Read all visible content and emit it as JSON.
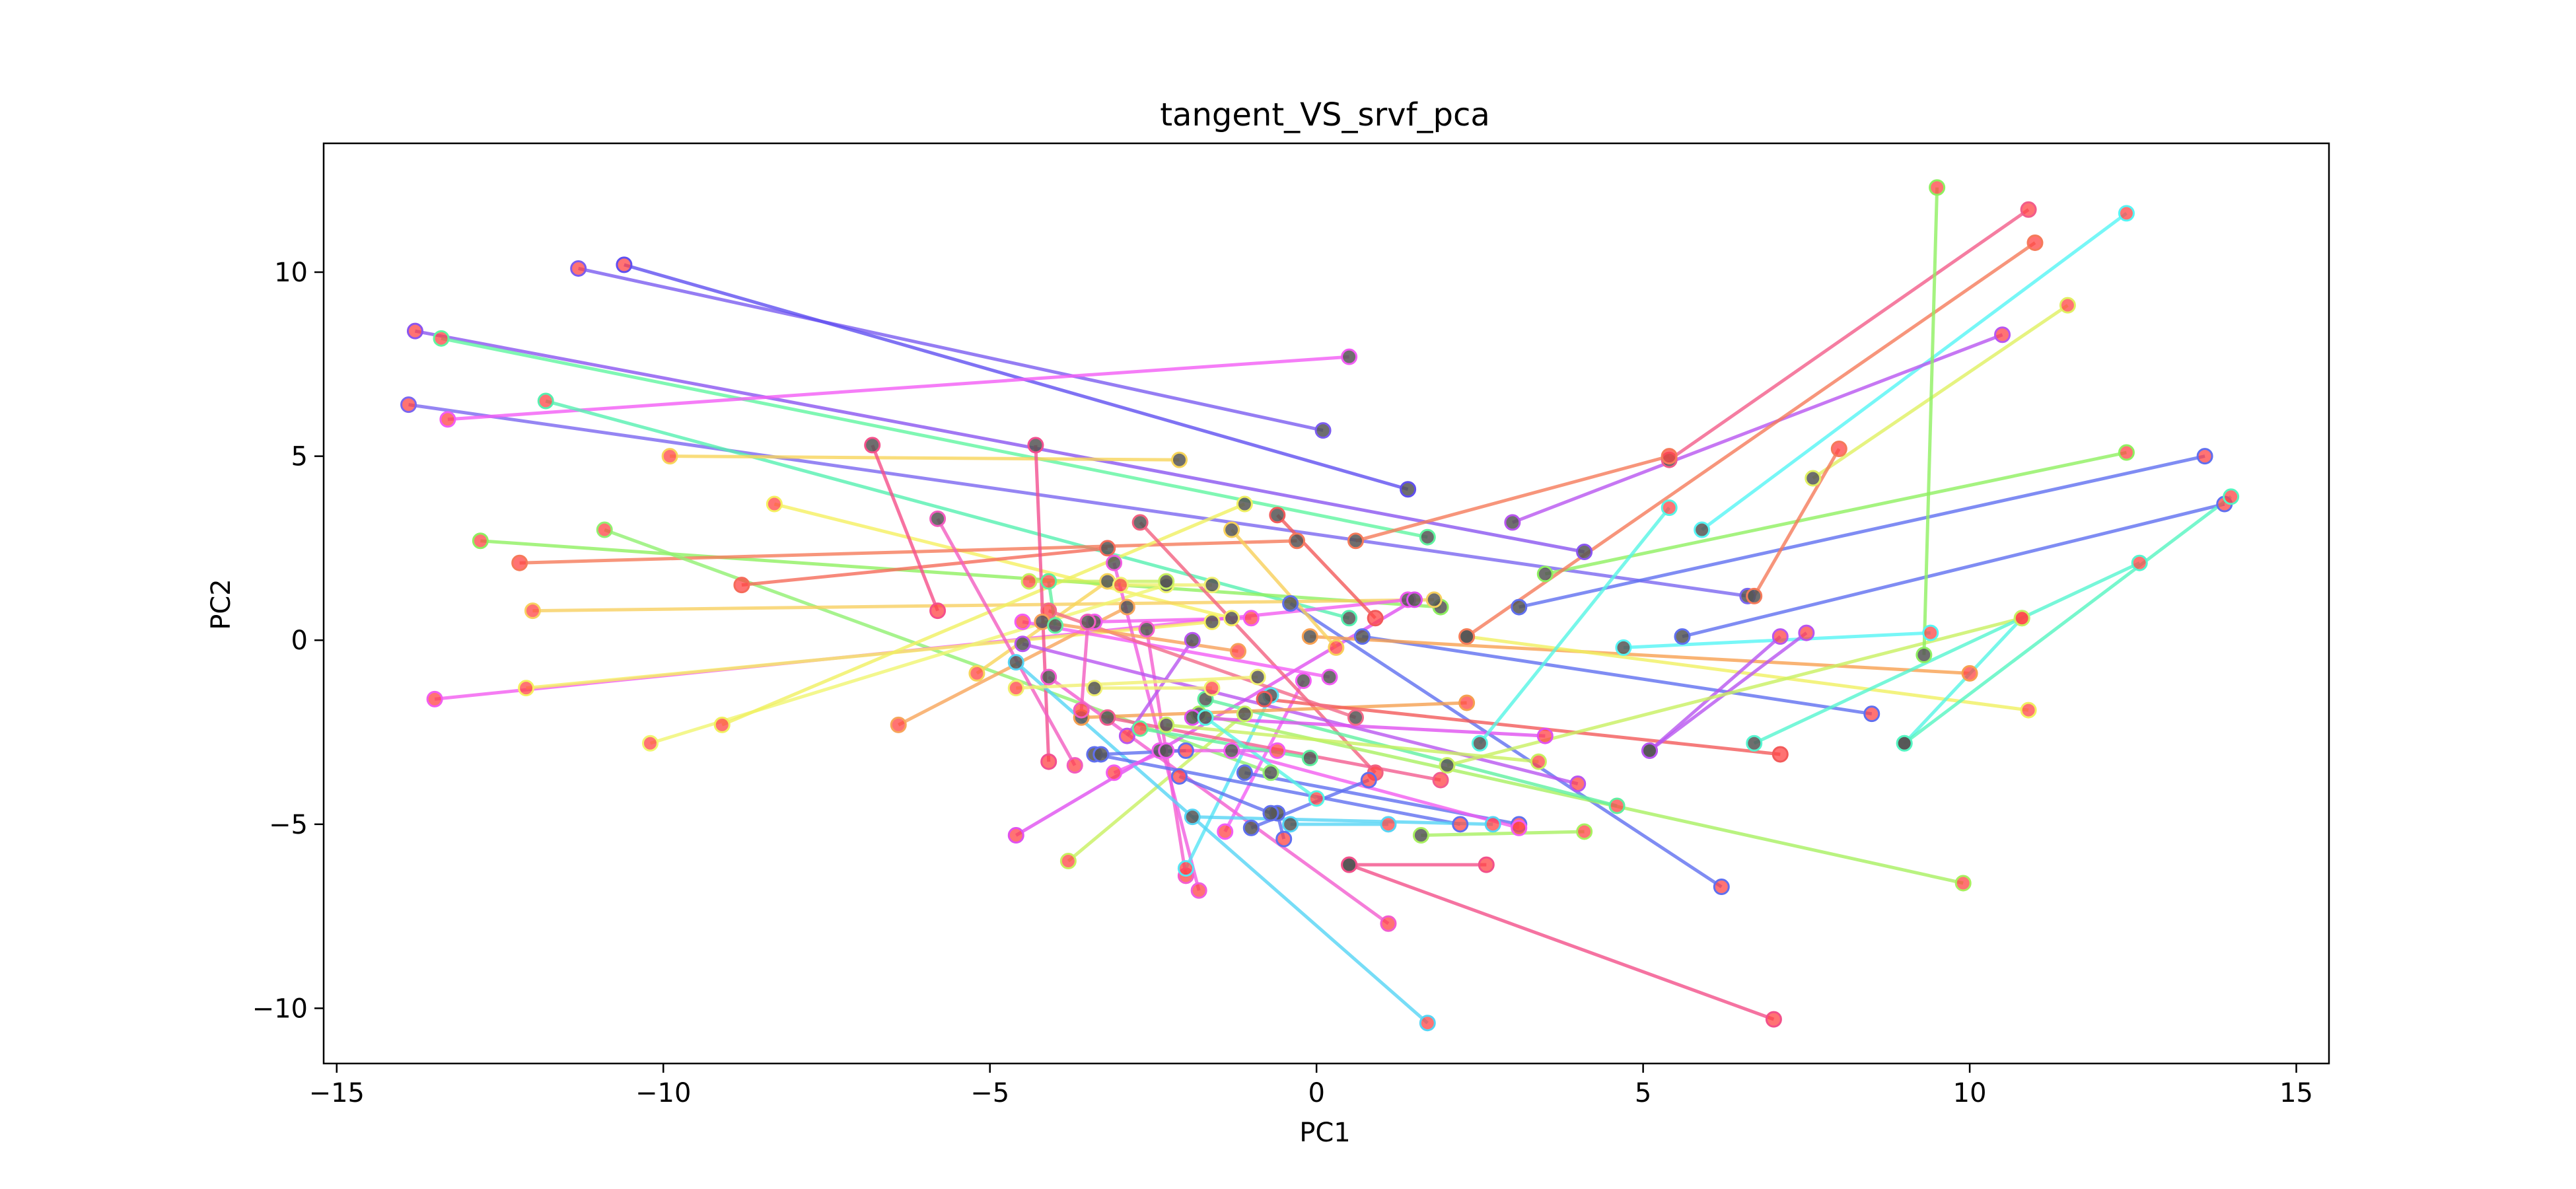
{
  "chart_data": {
    "type": "scatter",
    "title": "tangent_VS_srvf_pca",
    "xlabel": "PC1",
    "ylabel": "PC2",
    "xlim": [
      -15.2,
      15.5
    ],
    "ylim": [
      -11.5,
      13.5
    ],
    "xticks": [
      -15,
      -10,
      -5,
      0,
      5,
      10,
      15
    ],
    "yticks": [
      -10,
      -5,
      0,
      5,
      10
    ],
    "xtick_labels": [
      "−15",
      "−10",
      "−5",
      "0",
      "5",
      "10",
      "15"
    ],
    "ytick_labels": [
      "−10",
      "−5",
      "0",
      "5",
      "10"
    ],
    "grid": false,
    "legend": "none",
    "marker_colors": {
      "tangent": "#ff4444",
      "srvf": "#555555"
    },
    "pairs": [
      {
        "tangent": [
          -11.3,
          10.1
        ],
        "srvf": [
          0.1,
          5.7
        ],
        "color": "#7b5cf0"
      },
      {
        "tangent": [
          -10.6,
          10.2
        ],
        "srvf": [
          1.4,
          4.1
        ],
        "color": "#5f4ff0"
      },
      {
        "tangent": [
          -13.8,
          8.4
        ],
        "srvf": [
          4.1,
          2.4
        ],
        "color": "#8a55f0"
      },
      {
        "tangent": [
          -13.4,
          8.2
        ],
        "srvf": [
          1.7,
          2.8
        ],
        "color": "#5ff5a0"
      },
      {
        "tangent": [
          -13.9,
          6.4
        ],
        "srvf": [
          6.6,
          1.2
        ],
        "color": "#7a66f0"
      },
      {
        "tangent": [
          -13.3,
          6.0
        ],
        "srvf": [
          0.5,
          7.7
        ],
        "color": "#f25cf5"
      },
      {
        "tangent": [
          -11.8,
          6.5
        ],
        "srvf": [
          0.5,
          0.6
        ],
        "color": "#55f0b0"
      },
      {
        "tangent": [
          -9.9,
          5.0
        ],
        "srvf": [
          -2.1,
          4.9
        ],
        "color": "#f7d55a"
      },
      {
        "tangent": [
          -8.3,
          3.7
        ],
        "srvf": [
          -1.3,
          0.6
        ],
        "color": "#f5f060"
      },
      {
        "tangent": [
          -12.8,
          2.7
        ],
        "srvf": [
          1.9,
          0.9
        ],
        "color": "#8ef060"
      },
      {
        "tangent": [
          -12.2,
          2.1
        ],
        "srvf": [
          -0.3,
          2.7
        ],
        "color": "#f57a5a"
      },
      {
        "tangent": [
          -10.9,
          3.0
        ],
        "srvf": [
          -0.7,
          -3.6
        ],
        "color": "#90f070"
      },
      {
        "tangent": [
          -8.8,
          1.5
        ],
        "srvf": [
          -3.2,
          2.5
        ],
        "color": "#f56b5a"
      },
      {
        "tangent": [
          -12.0,
          0.8
        ],
        "srvf": [
          1.8,
          1.1
        ],
        "color": "#f7d060"
      },
      {
        "tangent": [
          -13.5,
          -1.6
        ],
        "srvf": [
          1.4,
          1.1
        ],
        "color": "#f25cf0"
      },
      {
        "tangent": [
          -12.1,
          -1.3
        ],
        "srvf": [
          -1.6,
          0.5
        ],
        "color": "#f5f060"
      },
      {
        "tangent": [
          -10.2,
          -2.8
        ],
        "srvf": [
          -2.3,
          1.5
        ],
        "color": "#f0f570"
      },
      {
        "tangent": [
          -9.1,
          -2.3
        ],
        "srvf": [
          -1.1,
          3.7
        ],
        "color": "#f0f060"
      },
      {
        "tangent": [
          -6.4,
          -2.3
        ],
        "srvf": [
          -2.9,
          0.9
        ],
        "color": "#f7a55a"
      },
      {
        "tangent": [
          -5.8,
          0.8
        ],
        "srvf": [
          -6.8,
          5.3
        ],
        "color": "#f54f8a"
      },
      {
        "tangent": [
          -5.2,
          -0.9
        ],
        "srvf": [
          -3.2,
          1.6
        ],
        "color": "#f7d55a"
      },
      {
        "tangent": [
          -4.6,
          -5.3
        ],
        "srvf": [
          1.5,
          1.1
        ],
        "color": "#e050f0"
      },
      {
        "tangent": [
          -3.8,
          -6.0
        ],
        "srvf": [
          -1.1,
          -2.0
        ],
        "color": "#c8f060"
      },
      {
        "tangent": [
          -4.1,
          -3.3
        ],
        "srvf": [
          -4.3,
          5.3
        ],
        "color": "#f24f90"
      },
      {
        "tangent": [
          -3.7,
          -3.4
        ],
        "srvf": [
          -5.8,
          3.3
        ],
        "color": "#f25cc0"
      },
      {
        "tangent": [
          -2.0,
          -6.4
        ],
        "srvf": [
          -2.6,
          0.3
        ],
        "color": "#f55cd0"
      },
      {
        "tangent": [
          -1.8,
          -6.8
        ],
        "srvf": [
          -3.1,
          2.1
        ],
        "color": "#f05ce0"
      },
      {
        "tangent": [
          -2.0,
          -6.2
        ],
        "srvf": [
          -0.7,
          -1.5
        ],
        "color": "#55e5f5"
      },
      {
        "tangent": [
          1.7,
          -10.4
        ],
        "srvf": [
          -4.6,
          -0.6
        ],
        "color": "#55d5f5"
      },
      {
        "tangent": [
          1.1,
          -7.7
        ],
        "srvf": [
          -4.1,
          -1.0
        ],
        "color": "#f25cd0"
      },
      {
        "tangent": [
          -1.4,
          -5.2
        ],
        "srvf": [
          -0.2,
          -1.1
        ],
        "color": "#f25cf5"
      },
      {
        "tangent": [
          0.9,
          -3.6
        ],
        "srvf": [
          -2.7,
          3.2
        ],
        "color": "#f26080"
      },
      {
        "tangent": [
          2.6,
          -6.1
        ],
        "srvf": [
          0.5,
          -6.1
        ],
        "color": "#f2508a"
      },
      {
        "tangent": [
          7.0,
          -10.3
        ],
        "srvf": [
          0.5,
          -6.1
        ],
        "color": "#f2508a"
      },
      {
        "tangent": [
          6.2,
          -6.7
        ],
        "srvf": [
          -0.4,
          1.0
        ],
        "color": "#5f6ff0"
      },
      {
        "tangent": [
          9.9,
          -6.6
        ],
        "srvf": [
          -1.8,
          -2.0
        ],
        "color": "#a8f060"
      },
      {
        "tangent": [
          4.6,
          -4.5
        ],
        "srvf": [
          -1.7,
          -1.6
        ],
        "color": "#5ff0a0"
      },
      {
        "tangent": [
          3.1,
          -5.0
        ],
        "srvf": [
          -1.1,
          -3.6
        ],
        "color": "#5f6ff0"
      },
      {
        "tangent": [
          3.1,
          -5.1
        ],
        "srvf": [
          -1.3,
          -3.0
        ],
        "color": "#f25cf0"
      },
      {
        "tangent": [
          2.2,
          -5.0
        ],
        "srvf": [
          -3.4,
          -3.1
        ],
        "color": "#5f6ff0"
      },
      {
        "tangent": [
          1.9,
          -3.8
        ],
        "srvf": [
          -3.2,
          -2.1
        ],
        "color": "#f25c90"
      },
      {
        "tangent": [
          4.0,
          -3.9
        ],
        "srvf": [
          -4.5,
          -0.1
        ],
        "color": "#b855f0"
      },
      {
        "tangent": [
          3.5,
          -2.6
        ],
        "srvf": [
          -1.9,
          -2.1
        ],
        "color": "#e050f0"
      },
      {
        "tangent": [
          3.4,
          -3.3
        ],
        "srvf": [
          -2.3,
          -2.3
        ],
        "color": "#c8f060"
      },
      {
        "tangent": [
          2.3,
          -1.7
        ],
        "srvf": [
          -3.6,
          -2.1
        ],
        "color": "#f5a050"
      },
      {
        "tangent": [
          7.1,
          -3.1
        ],
        "srvf": [
          -0.8,
          -1.6
        ],
        "color": "#f25a5a"
      },
      {
        "tangent": [
          8.5,
          -2.0
        ],
        "srvf": [
          0.7,
          0.1
        ],
        "color": "#5f6ff0"
      },
      {
        "tangent": [
          10.0,
          -0.9
        ],
        "srvf": [
          -0.1,
          0.1
        ],
        "color": "#f7a050"
      },
      {
        "tangent": [
          10.9,
          -1.9
        ],
        "srvf": [
          2.3,
          0.1
        ],
        "color": "#f0f060"
      },
      {
        "tangent": [
          9.4,
          0.2
        ],
        "srvf": [
          4.7,
          -0.2
        ],
        "color": "#55f5f5"
      },
      {
        "tangent": [
          7.5,
          0.2
        ],
        "srvf": [
          5.1,
          -3.0
        ],
        "color": "#b855f0"
      },
      {
        "tangent": [
          7.1,
          0.1
        ],
        "srvf": [
          5.1,
          -3.0
        ],
        "color": "#b855f0"
      },
      {
        "tangent": [
          10.8,
          0.6
        ],
        "srvf": [
          9.0,
          -2.8
        ],
        "color": "#55f5e5"
      },
      {
        "tangent": [
          10.8,
          0.6
        ],
        "srvf": [
          2.0,
          -3.4
        ],
        "color": "#c8f060"
      },
      {
        "tangent": [
          12.6,
          2.1
        ],
        "srvf": [
          6.7,
          -2.8
        ],
        "color": "#55f5d0"
      },
      {
        "tangent": [
          13.9,
          3.7
        ],
        "srvf": [
          5.6,
          0.1
        ],
        "color": "#5f6ff0"
      },
      {
        "tangent": [
          14.0,
          3.9
        ],
        "srvf": [
          9.0,
          -2.8
        ],
        "color": "#55f5c0"
      },
      {
        "tangent": [
          13.6,
          5.0
        ],
        "srvf": [
          3.1,
          0.9
        ],
        "color": "#5f6ff0"
      },
      {
        "tangent": [
          12.4,
          5.1
        ],
        "srvf": [
          3.5,
          1.8
        ],
        "color": "#8ef060"
      },
      {
        "tangent": [
          12.4,
          11.6
        ],
        "srvf": [
          5.9,
          3.0
        ],
        "color": "#55f5f5"
      },
      {
        "tangent": [
          11.5,
          9.1
        ],
        "srvf": [
          7.6,
          4.4
        ],
        "color": "#e0f060"
      },
      {
        "tangent": [
          10.5,
          8.3
        ],
        "srvf": [
          3.0,
          3.2
        ],
        "color": "#b855f0"
      },
      {
        "tangent": [
          11.0,
          10.8
        ],
        "srvf": [
          2.3,
          0.1
        ],
        "color": "#f57a5a"
      },
      {
        "tangent": [
          10.9,
          11.7
        ],
        "srvf": [
          5.4,
          4.9
        ],
        "color": "#f25c8a"
      },
      {
        "tangent": [
          9.5,
          12.3
        ],
        "srvf": [
          9.3,
          -0.4
        ],
        "color": "#8ef060"
      },
      {
        "tangent": [
          5.4,
          5.0
        ],
        "srvf": [
          0.6,
          2.7
        ],
        "color": "#f57a5a"
      },
      {
        "tangent": [
          5.4,
          3.6
        ],
        "srvf": [
          2.5,
          -2.8
        ],
        "color": "#55f5e5"
      },
      {
        "tangent": [
          8.0,
          5.2
        ],
        "srvf": [
          6.7,
          1.2
        ],
        "color": "#f57a5a"
      },
      {
        "tangent": [
          0.3,
          -0.2
        ],
        "srvf": [
          -1.3,
          3.0
        ],
        "color": "#f7d05a"
      },
      {
        "tangent": [
          0.9,
          0.6
        ],
        "srvf": [
          -0.6,
          3.4
        ],
        "color": "#f25a5a"
      },
      {
        "tangent": [
          0.0,
          -4.3
        ],
        "srvf": [
          -1.7,
          -2.1
        ],
        "color": "#55f5e5"
      },
      {
        "tangent": [
          -0.6,
          -3.0
        ],
        "srvf": [
          -2.4,
          -3.0
        ],
        "color": "#f25cf0"
      },
      {
        "tangent": [
          -1.0,
          0.6
        ],
        "srvf": [
          -3.4,
          0.5
        ],
        "color": "#f25cf0"
      },
      {
        "tangent": [
          -2.9,
          -2.6
        ],
        "srvf": [
          -1.9,
          0.0
        ],
        "color": "#b855f0"
      },
      {
        "tangent": [
          -4.5,
          0.5
        ],
        "srvf": [
          0.2,
          -1.0
        ],
        "color": "#f25cf5"
      },
      {
        "tangent": [
          -4.1,
          0.8
        ],
        "srvf": [
          0.6,
          -2.1
        ],
        "color": "#f26a8a"
      },
      {
        "tangent": [
          -1.6,
          -1.3
        ],
        "srvf": [
          -3.4,
          -1.3
        ],
        "color": "#f0f070"
      },
      {
        "tangent": [
          -4.6,
          -1.3
        ],
        "srvf": [
          -0.9,
          -1.0
        ],
        "color": "#f0f070"
      },
      {
        "tangent": [
          -2.7,
          -2.4
        ],
        "srvf": [
          -0.1,
          -3.2
        ],
        "color": "#5ff0a0"
      },
      {
        "tangent": [
          1.1,
          -5.0
        ],
        "srvf": [
          -0.4,
          -5.0
        ],
        "color": "#55d5f5"
      },
      {
        "tangent": [
          2.7,
          -5.0
        ],
        "srvf": [
          -1.9,
          -4.8
        ],
        "color": "#55d5f5"
      },
      {
        "tangent": [
          0.8,
          -3.8
        ],
        "srvf": [
          -1.0,
          -5.1
        ],
        "color": "#5f6ff0"
      },
      {
        "tangent": [
          4.1,
          -5.2
        ],
        "srvf": [
          1.6,
          -5.3
        ],
        "color": "#a8f060"
      },
      {
        "tangent": [
          -0.5,
          -5.4
        ],
        "srvf": [
          -0.6,
          -4.7
        ],
        "color": "#5f6ff0"
      },
      {
        "tangent": [
          -1.2,
          -0.3
        ],
        "srvf": [
          -4.2,
          0.5
        ],
        "color": "#f7a05a"
      },
      {
        "tangent": [
          -3.6,
          -1.9
        ],
        "srvf": [
          -3.5,
          0.5
        ],
        "color": "#f25cc0"
      },
      {
        "tangent": [
          -4.4,
          1.6
        ],
        "srvf": [
          -2.3,
          1.6
        ],
        "color": "#c8f060"
      },
      {
        "tangent": [
          -3.0,
          1.5
        ],
        "srvf": [
          -1.6,
          1.5
        ],
        "color": "#f0f070"
      },
      {
        "tangent": [
          -4.1,
          1.6
        ],
        "srvf": [
          -4.0,
          0.4
        ],
        "color": "#5ff0a0"
      },
      {
        "tangent": [
          -2.0,
          -3.0
        ],
        "srvf": [
          -3.3,
          -3.1
        ],
        "color": "#5f6ff0"
      },
      {
        "tangent": [
          -2.1,
          -3.7
        ],
        "srvf": [
          -0.7,
          -4.7
        ],
        "color": "#5f6ff0"
      },
      {
        "tangent": [
          -3.1,
          -3.6
        ],
        "srvf": [
          -2.3,
          -3.0
        ],
        "color": "#f25cf0"
      }
    ]
  }
}
